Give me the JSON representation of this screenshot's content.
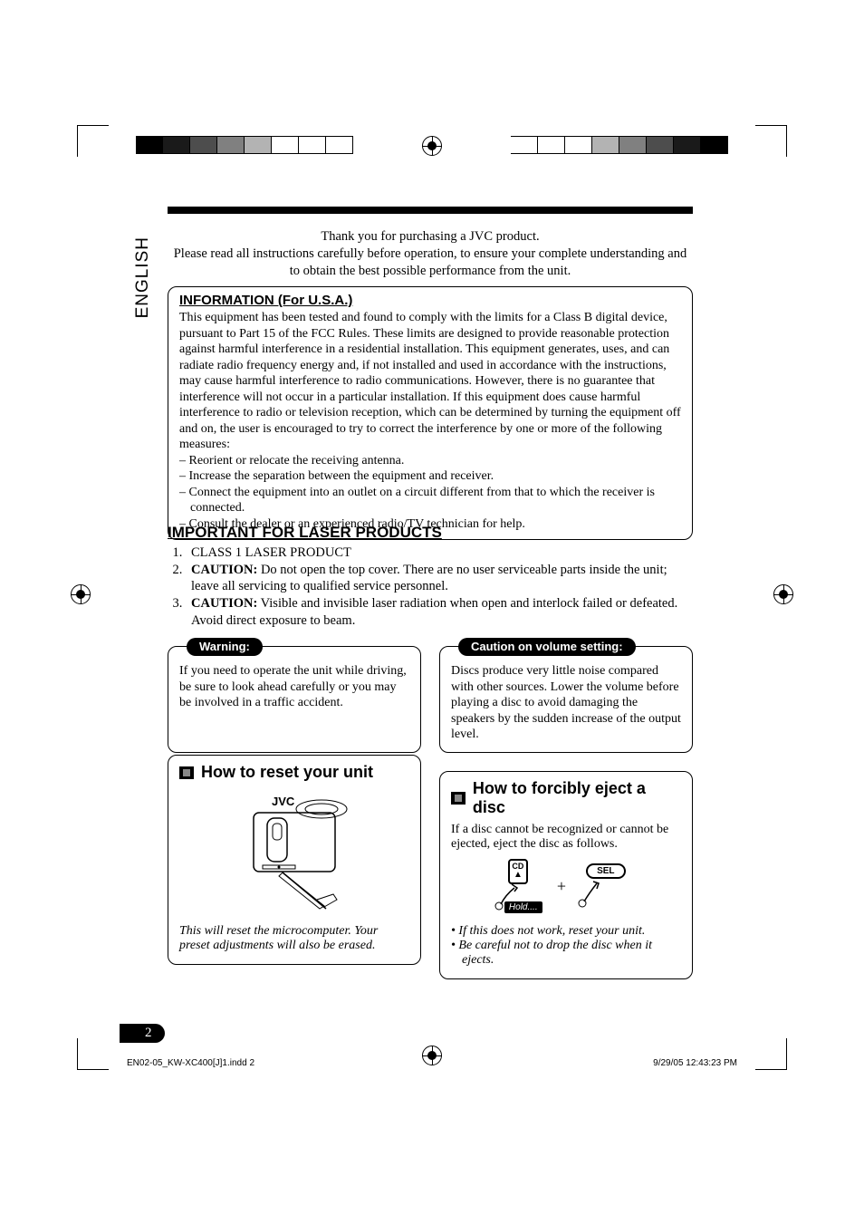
{
  "language_tab": "ENGLISH",
  "intro": {
    "line1": "Thank you for purchasing a JVC product.",
    "line2": "Please read all instructions carefully before operation, to ensure your complete understanding and to obtain the best possible performance from the unit."
  },
  "information_box": {
    "title": "INFORMATION (For U.S.A.)",
    "body": "This equipment has been tested and found to comply with the limits for a Class B digital device, pursuant to Part 15 of the FCC Rules. These limits are designed to provide reasonable protection against harmful interference in a residential installation. This equipment generates, uses, and can radiate radio frequency energy and, if not installed and used in accordance with the instructions, may cause harmful interference to radio communications. However, there is no guarantee that interference will not occur in a particular installation. If this equipment does cause harmful interference to radio or television reception, which can be determined by turning the equipment off and on, the user is encouraged to try to correct the interference by one or more of the following measures:",
    "measures": [
      "– Reorient or relocate the receiving antenna.",
      "– Increase the separation between the equipment and receiver.",
      "– Connect the equipment into an outlet on a circuit different from that to which the receiver is connected.",
      "– Consult the dealer or an experienced radio/TV technician for help."
    ]
  },
  "laser": {
    "title": "IMPORTANT FOR LASER PRODUCTS",
    "items": [
      {
        "plain": "CLASS 1 LASER PRODUCT"
      },
      {
        "bold": "CAUTION:",
        "rest": " Do not open the top cover. There are no user serviceable parts inside the unit; leave all servicing to qualified service personnel."
      },
      {
        "bold": "CAUTION:",
        "rest": " Visible and invisible laser radiation when open and interlock failed or defeated. Avoid direct exposure to beam."
      }
    ]
  },
  "warning": {
    "tab": "Warning:",
    "body": "If you need to operate the unit while driving, be sure to look ahead carefully or you may be involved in a traffic accident."
  },
  "caution_volume": {
    "tab": "Caution on volume setting:",
    "body": "Discs produce very little noise compared with other sources. Lower the volume before playing a disc to avoid damaging the speakers by the sudden increase of the output level."
  },
  "reset": {
    "title": "How to reset your unit",
    "logo": "JVC",
    "note": "This will reset the microcomputer. Your preset adjustments will also be erased."
  },
  "eject": {
    "title": "How to forcibly eject a disc",
    "intro": "If a disc cannot be recognized or cannot be ejected, eject the disc as follows.",
    "cd_label": "CD",
    "plus": "+",
    "hold": "Hold....",
    "sel": "SEL",
    "bullets": [
      "If this does not work, reset your unit.",
      "Be careful not to drop the disc when it ejects."
    ]
  },
  "registration_bar_colors_left": [
    "#000000",
    "#1a1a1a",
    "#4d4d4d",
    "#808080",
    "#b3b3b3",
    "#ffffff",
    "#ffffff",
    "#ffffff"
  ],
  "registration_bar_colors_right": [
    "#000000",
    "#1a1a1a",
    "#4d4d4d",
    "#808080",
    "#b3b3b3",
    "#ffffff",
    "#ffffff",
    "#ffffff"
  ],
  "page_number": "2",
  "footer": {
    "left": "EN02-05_KW-XC400[J]1.indd   2",
    "right": "9/29/05   12:43:23 PM"
  }
}
